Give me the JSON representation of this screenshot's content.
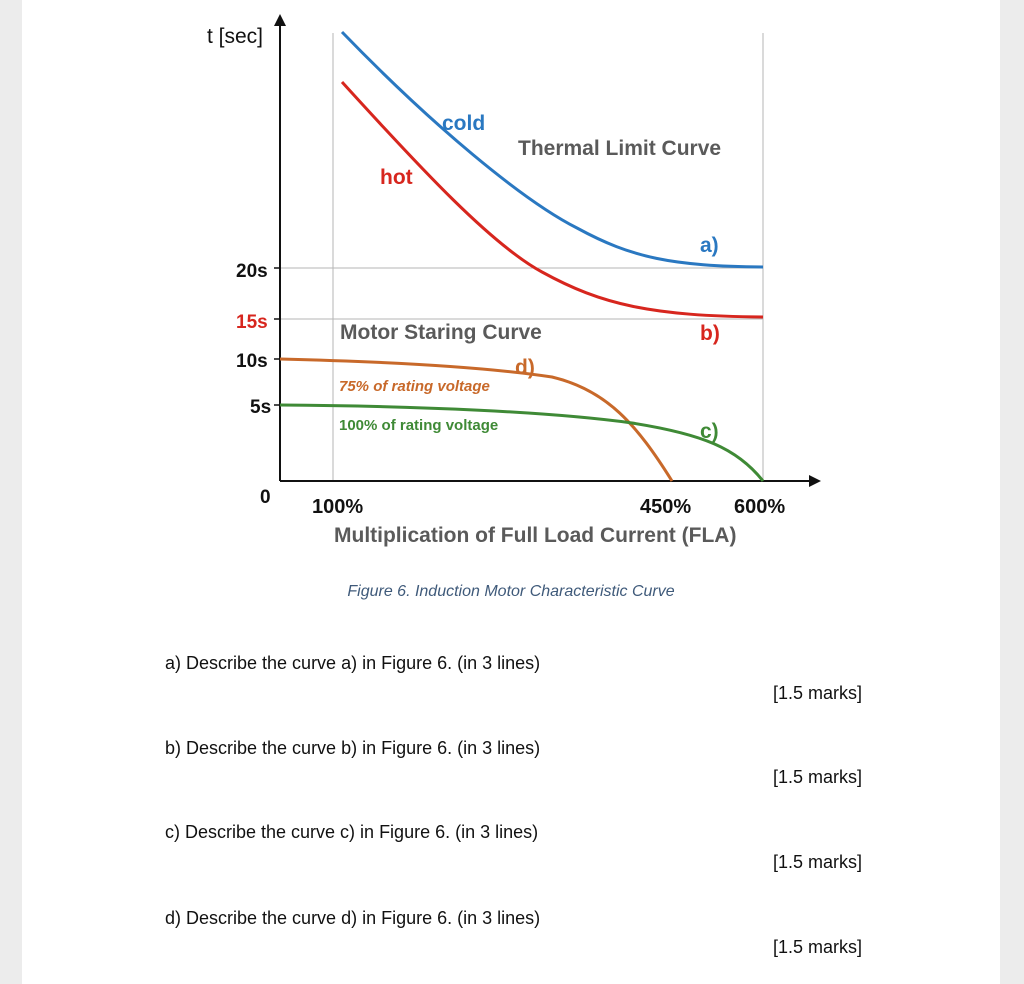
{
  "figure": {
    "caption": "Figure 6. Induction Motor Characteristic Curve",
    "y_axis_label": "t [sec]",
    "x_axis_label": "Multiplication of Full Load Current (FLA)",
    "origin_label": "0",
    "y_ticks": [
      {
        "label": "20s",
        "color": "#111111"
      },
      {
        "label": "15s",
        "color": "#d7261e"
      },
      {
        "label": "10s",
        "color": "#111111"
      },
      {
        "label": "5s",
        "color": "#111111"
      }
    ],
    "x_ticks": [
      "100%",
      "450%",
      "600%"
    ],
    "labels": {
      "cold": "cold",
      "hot": "hot",
      "thermal": "Thermal Limit Curve",
      "motor": "Motor Staring Curve",
      "v75": "75% of rating voltage",
      "v100": "100% of rating voltage",
      "a": "a)",
      "b": "b)",
      "c": "c)",
      "d": "d)"
    },
    "colors": {
      "cold": "#2a78c1",
      "hot": "#d7261e",
      "v75": "#c8692a",
      "v100": "#3f8a36",
      "grid": "#b5b5b5"
    }
  },
  "questions": [
    {
      "text": "a)  Describe the curve a) in Figure 6. (in 3 lines)",
      "marks": "[1.5 marks]"
    },
    {
      "text": "b)  Describe the curve b)  in Figure 6. (in 3 lines)",
      "marks": "[1.5 marks]"
    },
    {
      "text": "c)  Describe the curve c)  in Figure 6. (in 3 lines)",
      "marks": "[1.5 marks]"
    },
    {
      "text": "d)  Describe the curve d)  in Figure 6. (in 3 lines)",
      "marks": "[1.5 marks]"
    }
  ]
}
